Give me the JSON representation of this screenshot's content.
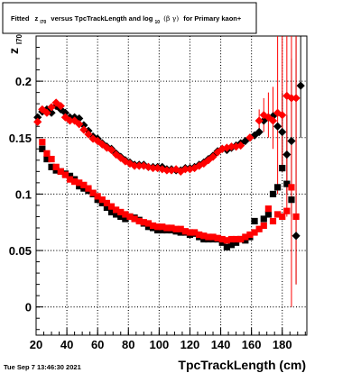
{
  "title": {
    "prefix": "Fitted",
    "var": "z",
    "var_sub": "I70",
    "middle": "versus TpcTrackLength and log",
    "log_sub": "10",
    "paren": "(β γ)",
    "suffix": "for Primary kaon+"
  },
  "timestamp": "Tue Sep  7 13:46:30 2021",
  "chart_data": {
    "type": "scatter",
    "title": "Fitted z_I70 versus TpcTrackLength and log_10(β γ) for Primary kaon+",
    "xlabel": "TpcTrackLength (cm)",
    "ylabel": "z",
    "ylabel_sub": "I70",
    "xlim": [
      20,
      196
    ],
    "ylim": [
      -0.025,
      0.24
    ],
    "xticks": [
      20,
      40,
      60,
      80,
      100,
      120,
      140,
      160,
      180
    ],
    "yticks": [
      0,
      0.05,
      0.1,
      0.15,
      0.2
    ],
    "ytick_labels": [
      "0",
      "0.05",
      "0.1",
      "0.15",
      "0.2"
    ],
    "grid": true,
    "colors": {
      "black": "#000000",
      "red": "#ff0000"
    },
    "series": [
      {
        "color": "black",
        "marker": "diamond",
        "points": [
          [
            21,
            0.168
          ],
          [
            24,
            0.173
          ],
          [
            27,
            0.175
          ],
          [
            30,
            0.172
          ],
          [
            33,
            0.178
          ],
          [
            36,
            0.175
          ],
          [
            39,
            0.172
          ],
          [
            42,
            0.168
          ],
          [
            45,
            0.168
          ],
          [
            48,
            0.167
          ],
          [
            51,
            0.161
          ],
          [
            54,
            0.156
          ],
          [
            57,
            0.151
          ],
          [
            60,
            0.149
          ],
          [
            63,
            0.145
          ],
          [
            66,
            0.142
          ],
          [
            69,
            0.14
          ],
          [
            72,
            0.136
          ],
          [
            75,
            0.133
          ],
          [
            78,
            0.13
          ],
          [
            81,
            0.128
          ],
          [
            84,
            0.126
          ],
          [
            87,
            0.126
          ],
          [
            90,
            0.126
          ],
          [
            93,
            0.124
          ],
          [
            96,
            0.124
          ],
          [
            99,
            0.124
          ],
          [
            102,
            0.124
          ],
          [
            105,
            0.122
          ],
          [
            108,
            0.122
          ],
          [
            111,
            0.121
          ],
          [
            114,
            0.121
          ],
          [
            117,
            0.123
          ],
          [
            120,
            0.123
          ],
          [
            123,
            0.124
          ],
          [
            126,
            0.126
          ],
          [
            129,
            0.128
          ],
          [
            132,
            0.131
          ],
          [
            135,
            0.134
          ],
          [
            138,
            0.138
          ],
          [
            141,
            0.14
          ],
          [
            144,
            0.139
          ],
          [
            147,
            0.141
          ],
          [
            150,
            0.143
          ],
          [
            153,
            0.145
          ],
          [
            156,
            0.147
          ],
          [
            162,
            0.152
          ],
          [
            165,
            0.155
          ],
          [
            168,
            0.165
          ],
          [
            171,
            0.168
          ],
          [
            174,
            0.169
          ],
          [
            177,
            0.16
          ],
          [
            180,
            0.155
          ],
          [
            183,
            0.135
          ],
          [
            186,
            0.147
          ],
          [
            189,
            0.063
          ],
          [
            192,
            0.196
          ]
        ],
        "errors": [
          [
            180,
            0.12,
            0.19
          ],
          [
            183,
            0.1,
            0.17
          ],
          [
            186,
            0.08,
            0.22
          ],
          [
            189,
            0.02,
            0.24
          ],
          [
            192,
            0.15,
            0.24
          ]
        ]
      },
      {
        "color": "black",
        "marker": "square",
        "points": [
          [
            24,
            0.14
          ],
          [
            27,
            0.131
          ],
          [
            30,
            0.124
          ],
          [
            33,
            0.121
          ],
          [
            36,
            0.12
          ],
          [
            39,
            0.118
          ],
          [
            42,
            0.116
          ],
          [
            45,
            0.113
          ],
          [
            48,
            0.107
          ],
          [
            51,
            0.105
          ],
          [
            54,
            0.103
          ],
          [
            57,
            0.1
          ],
          [
            60,
            0.095
          ],
          [
            63,
            0.092
          ],
          [
            66,
            0.088
          ],
          [
            69,
            0.084
          ],
          [
            72,
            0.082
          ],
          [
            75,
            0.08
          ],
          [
            78,
            0.078
          ],
          [
            81,
            0.08
          ],
          [
            84,
            0.079
          ],
          [
            87,
            0.077
          ],
          [
            90,
            0.074
          ],
          [
            93,
            0.071
          ],
          [
            96,
            0.07
          ],
          [
            99,
            0.068
          ],
          [
            102,
            0.068
          ],
          [
            105,
            0.068
          ],
          [
            108,
            0.068
          ],
          [
            111,
            0.067
          ],
          [
            114,
            0.066
          ],
          [
            117,
            0.066
          ],
          [
            120,
            0.064
          ],
          [
            123,
            0.065
          ],
          [
            126,
            0.062
          ],
          [
            129,
            0.06
          ],
          [
            132,
            0.06
          ],
          [
            135,
            0.06
          ],
          [
            138,
            0.06
          ],
          [
            141,
            0.057
          ],
          [
            144,
            0.053
          ],
          [
            147,
            0.055
          ],
          [
            150,
            0.057
          ],
          [
            153,
            0.06
          ],
          [
            156,
            0.059
          ],
          [
            159,
            0.062
          ],
          [
            162,
            0.076
          ],
          [
            168,
            0.078
          ],
          [
            171,
            0.082
          ],
          [
            174,
            0.1
          ],
          [
            177,
            0.106
          ],
          [
            180,
            0.123
          ],
          [
            183,
            0.109
          ],
          [
            186,
            0.095
          ]
        ]
      },
      {
        "color": "red",
        "marker": "diamond",
        "points": [
          [
            21,
            0.164
          ],
          [
            24,
            0.175
          ],
          [
            27,
            0.172
          ],
          [
            30,
            0.177
          ],
          [
            33,
            0.181
          ],
          [
            36,
            0.178
          ],
          [
            39,
            0.168
          ],
          [
            42,
            0.165
          ],
          [
            45,
            0.165
          ],
          [
            48,
            0.162
          ],
          [
            51,
            0.157
          ],
          [
            54,
            0.153
          ],
          [
            57,
            0.149
          ],
          [
            60,
            0.147
          ],
          [
            63,
            0.144
          ],
          [
            66,
            0.141
          ],
          [
            69,
            0.139
          ],
          [
            72,
            0.135
          ],
          [
            75,
            0.132
          ],
          [
            78,
            0.129
          ],
          [
            81,
            0.127
          ],
          [
            84,
            0.125
          ],
          [
            87,
            0.125
          ],
          [
            90,
            0.125
          ],
          [
            93,
            0.124
          ],
          [
            96,
            0.123
          ],
          [
            99,
            0.123
          ],
          [
            102,
            0.122
          ],
          [
            105,
            0.121
          ],
          [
            108,
            0.121
          ],
          [
            111,
            0.122
          ],
          [
            114,
            0.12
          ],
          [
            117,
            0.122
          ],
          [
            120,
            0.122
          ],
          [
            123,
            0.123
          ],
          [
            126,
            0.125
          ],
          [
            129,
            0.127
          ],
          [
            132,
            0.13
          ],
          [
            135,
            0.133
          ],
          [
            138,
            0.137
          ],
          [
            141,
            0.14
          ],
          [
            144,
            0.141
          ],
          [
            147,
            0.142
          ],
          [
            150,
            0.142
          ],
          [
            153,
            0.143
          ],
          [
            159,
            0.15
          ],
          [
            165,
            0.165
          ],
          [
            168,
            0.17
          ],
          [
            171,
            0.168
          ],
          [
            174,
            0.165
          ],
          [
            177,
            0.172
          ],
          [
            180,
            0.17
          ],
          [
            183,
            0.187
          ],
          [
            186,
            0.185
          ],
          [
            189,
            0.185
          ]
        ],
        "errors": [
          [
            165,
            0.155,
            0.175
          ],
          [
            168,
            0.155,
            0.185
          ],
          [
            171,
            0.15,
            0.19
          ],
          [
            174,
            0.14,
            0.195
          ],
          [
            177,
            0.1,
            0.24
          ],
          [
            180,
            0.12,
            0.24
          ],
          [
            183,
            0.08,
            0.24
          ],
          [
            186,
            0.0,
            0.24
          ],
          [
            189,
            0.02,
            0.24
          ]
        ]
      },
      {
        "color": "red",
        "marker": "square",
        "points": [
          [
            24,
            0.146
          ],
          [
            27,
            0.136
          ],
          [
            30,
            0.131
          ],
          [
            33,
            0.124
          ],
          [
            36,
            0.12
          ],
          [
            39,
            0.117
          ],
          [
            42,
            0.113
          ],
          [
            45,
            0.111
          ],
          [
            48,
            0.11
          ],
          [
            51,
            0.108
          ],
          [
            54,
            0.105
          ],
          [
            57,
            0.101
          ],
          [
            60,
            0.098
          ],
          [
            63,
            0.095
          ],
          [
            66,
            0.092
          ],
          [
            69,
            0.089
          ],
          [
            72,
            0.086
          ],
          [
            75,
            0.084
          ],
          [
            78,
            0.082
          ],
          [
            81,
            0.08
          ],
          [
            84,
            0.078
          ],
          [
            87,
            0.076
          ],
          [
            90,
            0.075
          ],
          [
            93,
            0.074
          ],
          [
            96,
            0.072
          ],
          [
            99,
            0.071
          ],
          [
            102,
            0.071
          ],
          [
            105,
            0.07
          ],
          [
            108,
            0.07
          ],
          [
            111,
            0.069
          ],
          [
            114,
            0.069
          ],
          [
            117,
            0.067
          ],
          [
            120,
            0.066
          ],
          [
            123,
            0.066
          ],
          [
            126,
            0.064
          ],
          [
            129,
            0.063
          ],
          [
            132,
            0.062
          ],
          [
            135,
            0.062
          ],
          [
            138,
            0.061
          ],
          [
            141,
            0.06
          ],
          [
            144,
            0.059
          ],
          [
            147,
            0.06
          ],
          [
            150,
            0.06
          ],
          [
            153,
            0.06
          ],
          [
            156,
            0.062
          ],
          [
            159,
            0.064
          ],
          [
            162,
            0.066
          ],
          [
            165,
            0.069
          ],
          [
            168,
            0.072
          ],
          [
            171,
            0.087
          ],
          [
            174,
            0.076
          ],
          [
            177,
            0.082
          ],
          [
            180,
            0.08
          ],
          [
            183,
            0.085
          ],
          [
            186,
            0.106
          ],
          [
            189,
            0.08
          ]
        ]
      }
    ]
  }
}
